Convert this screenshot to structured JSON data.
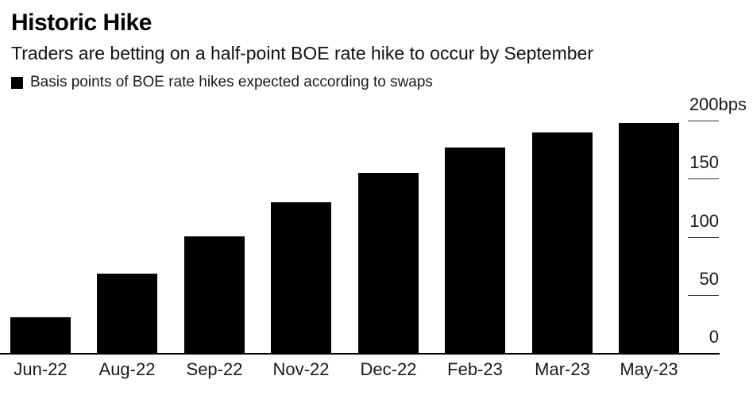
{
  "chart_data": {
    "type": "bar",
    "title": "Historic Hike",
    "subtitle": "Traders are betting on a half-point BOE rate hike to occur by September",
    "legend": [
      "Basis points of BOE rate hikes expected according to swaps"
    ],
    "legend_position": "top-left",
    "categories": [
      "Jun-22",
      "Aug-22",
      "Sep-22",
      "Nov-22",
      "Dec-22",
      "Feb-23",
      "Mar-23",
      "May-23"
    ],
    "values": [
      31,
      68,
      100,
      130,
      155,
      177,
      190,
      198
    ],
    "xlabel": "",
    "ylabel": "",
    "ylim": [
      0,
      200
    ],
    "yticks": {
      "values": [
        200,
        150,
        100,
        50,
        0
      ],
      "labels": [
        "200",
        "150",
        "100",
        "50",
        "0"
      ],
      "unit_suffix": "bps",
      "side": "right"
    },
    "grid": false,
    "bar_color": "#000000",
    "background_color": "#ffffff",
    "text_color": "#000000"
  }
}
